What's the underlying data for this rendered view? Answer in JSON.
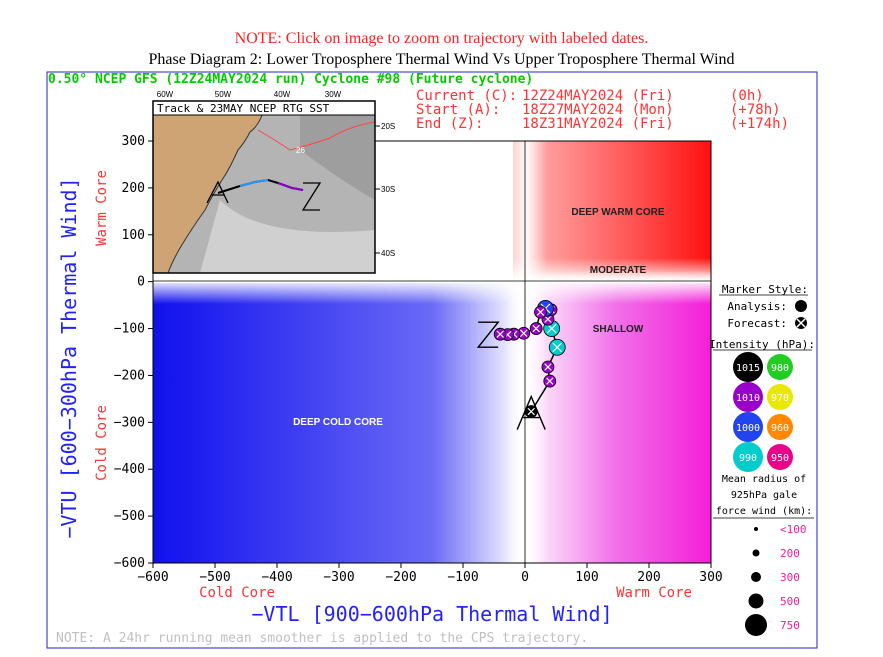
{
  "header": {
    "note": "NOTE: Click on image to zoom on trajectory with labeled dates.",
    "phase_title": "Phase Diagram 2: Lower Troposphere Thermal Wind Vs Upper Troposphere Thermal Wind"
  },
  "plot_header": {
    "title": "0.50° NCEP GFS (12Z24MAY2024 run) Cyclone #98 (Future cyclone)",
    "current_label": "Current (C):",
    "current_time": "12Z24MAY2024 (Fri)",
    "current_offset": "(0h)",
    "start_label": "Start (A):",
    "start_time": "18Z27MAY2024 (Mon)",
    "start_offset": "(+78h)",
    "end_label": "End (Z):",
    "end_time": "18Z31MAY2024 (Fri)",
    "end_offset": "(+174h)"
  },
  "regions": {
    "deep_warm": "DEEP WARM CORE",
    "moderate": "MODERATE",
    "shallow": "SHALLOW",
    "deep_cold": "DEEP COLD CORE"
  },
  "inset": {
    "title": "Track & 23MAY NCEP RTG SST",
    "lon_labels": [
      "60W",
      "50W",
      "40W",
      "30W"
    ],
    "lat_labels": [
      "20S",
      "30S",
      "40S"
    ],
    "contour_label": "26",
    "start_marker": "A",
    "end_marker": "Z"
  },
  "legend": {
    "marker_style_title": "Marker Style:",
    "analysis_label": "Analysis:",
    "forecast_label": "Forecast:",
    "intensity_title": "Intensity (hPa):",
    "intensities": [
      {
        "value": "1015",
        "color": "#000000"
      },
      {
        "value": "980",
        "color": "#22cc22"
      },
      {
        "value": "1010",
        "color": "#9900cc"
      },
      {
        "value": "970",
        "color": "#e8e800"
      },
      {
        "value": "1000",
        "color": "#2244ee"
      },
      {
        "value": "960",
        "color": "#ff8800"
      },
      {
        "value": "990",
        "color": "#00cccc"
      },
      {
        "value": "950",
        "color": "#ee0088"
      }
    ],
    "radius_title_1": "Mean radius of",
    "radius_title_2": "925hPa gale",
    "radius_title_3": "force wind (km):",
    "radii": [
      "<100",
      "200",
      "300",
      "500",
      "750"
    ]
  },
  "footer_note": "NOTE:  A 24hr running mean smoother is applied to the CPS trajectory.",
  "colors": {
    "analysis_accent": "#00cc00",
    "header_red": "#ff3333",
    "axis_blue": "#2222ff"
  },
  "chart_data": {
    "type": "scatter",
    "title": "Phase Diagram 2: Lower Troposphere Thermal Wind Vs Upper Troposphere Thermal Wind",
    "xlabel": "−VTL [900−600hPa Thermal Wind]",
    "ylabel": "−VTU [600−300hPa Thermal Wind]",
    "x_sub_left": "Cold Core",
    "x_sub_right": "Warm Core",
    "y_sub_top": "Warm Core",
    "y_sub_bottom": "Cold Core",
    "xlim": [
      -600,
      300
    ],
    "ylim": [
      -600,
      300
    ],
    "x_ticks": [
      -600,
      -500,
      -400,
      -300,
      -200,
      -100,
      0,
      100,
      200,
      300
    ],
    "y_ticks": [
      300,
      200,
      100,
      0,
      -100,
      -200,
      -300,
      -400,
      -500,
      -600
    ],
    "x_tick_labels": [
      "−600",
      "−500",
      "−400",
      "−300",
      "−200",
      "−100",
      "0",
      "100",
      "200",
      "300"
    ],
    "y_tick_labels": [
      "300",
      "200",
      "100",
      "0",
      "−100",
      "−200",
      "−300",
      "−400",
      "−500",
      "−600"
    ],
    "trajectory": [
      {
        "x": 10,
        "y": -277,
        "color": "#000000"
      },
      {
        "x": 40,
        "y": -212,
        "color": "#9900cc"
      },
      {
        "x": 37,
        "y": -182,
        "color": "#9900cc"
      },
      {
        "x": 52,
        "y": -140,
        "color": "#00cccc"
      },
      {
        "x": 43,
        "y": -100,
        "color": "#00cccc"
      },
      {
        "x": 37,
        "y": -80,
        "color": "#9900cc"
      },
      {
        "x": 42,
        "y": -60,
        "color": "#9900cc"
      },
      {
        "x": 33,
        "y": -57,
        "color": "#2244ee"
      },
      {
        "x": 25,
        "y": -65,
        "color": "#9900cc"
      },
      {
        "x": 18,
        "y": -100,
        "color": "#9900cc"
      },
      {
        "x": -2,
        "y": -110,
        "color": "#9900cc"
      },
      {
        "x": -18,
        "y": -112,
        "color": "#9900cc"
      },
      {
        "x": -28,
        "y": -113,
        "color": "#9900cc"
      },
      {
        "x": -40,
        "y": -112,
        "color": "#9900cc"
      }
    ]
  }
}
